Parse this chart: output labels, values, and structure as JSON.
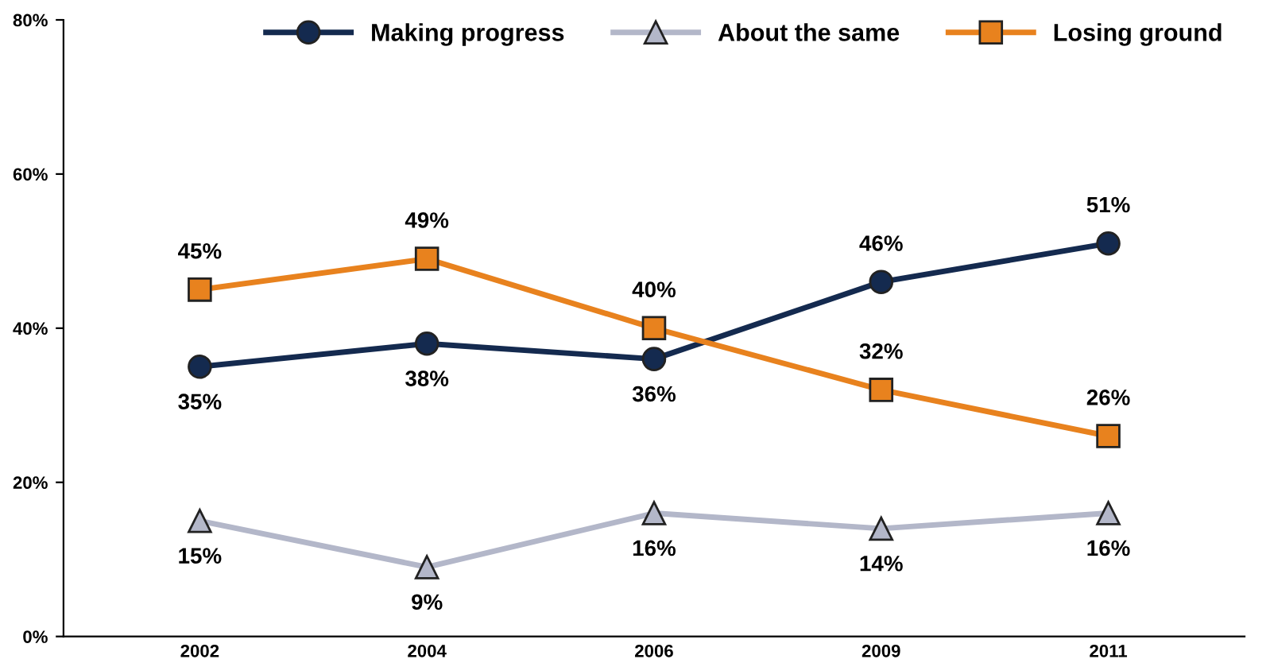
{
  "chart_data": {
    "type": "line",
    "categories": [
      "2002",
      "2004",
      "2006",
      "2009",
      "2011"
    ],
    "series": [
      {
        "name": "Making progress",
        "color": "#142a4f",
        "marker": "circle",
        "values": [
          35,
          38,
          36,
          46,
          51
        ],
        "value_labels": [
          "35%",
          "38%",
          "36%",
          "46%",
          "51%"
        ]
      },
      {
        "name": "About the same",
        "color": "#b3b7c9",
        "marker": "triangle",
        "values": [
          15,
          9,
          16,
          14,
          16
        ],
        "value_labels": [
          "15%",
          "9%",
          "16%",
          "14%",
          "16%"
        ]
      },
      {
        "name": "Losing ground",
        "color": "#e8821e",
        "marker": "square",
        "values": [
          45,
          49,
          40,
          32,
          26
        ],
        "value_labels": [
          "45%",
          "49%",
          "40%",
          "32%",
          "26%"
        ]
      }
    ],
    "ylim": [
      0,
      80
    ],
    "yticks": [
      {
        "value": 0,
        "label": "0%"
      },
      {
        "value": 20,
        "label": "20%"
      },
      {
        "value": 40,
        "label": "40%"
      },
      {
        "value": 60,
        "label": "60%"
      },
      {
        "value": 80,
        "label": "80%"
      }
    ],
    "grid": false,
    "legend": "top right",
    "line_style": "solid"
  }
}
